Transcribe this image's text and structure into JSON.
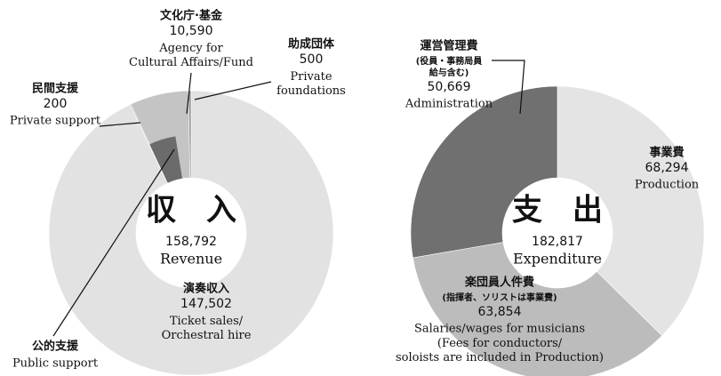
{
  "chart_data": [
    {
      "type": "donut",
      "title": "収　入",
      "title_en": "Revenue",
      "total": {
        "value": 158792,
        "label": "158,792"
      },
      "labels": [
        "演奏収入",
        "民間支援",
        "文化庁·基金",
        "助成団体"
      ],
      "labels_en": [
        "Ticket sales/\nOrchestral hire",
        "Private support",
        "Agency for\nCultural Affairs/Fund",
        "Private\nfoundations"
      ],
      "values": [
        147502,
        200,
        10590,
        500
      ],
      "value_labels": [
        "147,502",
        "200",
        "10,590",
        "500"
      ],
      "colors": [
        "#e2e2e2",
        "#b5b5b5",
        "#c4c4c4",
        "#9a9a9a"
      ],
      "inner": {
        "label": "公的支援",
        "label_en": "Public support",
        "value": 7000,
        "color": "#6b6b6b"
      }
    },
    {
      "type": "donut",
      "title": "支　出",
      "title_en": "Expenditure",
      "total": {
        "value": 182817,
        "label": "182,817"
      },
      "labels": [
        "事業費",
        "楽団員人件費",
        "運営管理費"
      ],
      "notes": [
        null,
        "(指揮者、ソリストは事業費)",
        "(役員・事務局員\n給与含む)"
      ],
      "labels_en": [
        "Production",
        "Salaries/wages for musicians",
        "Administration"
      ],
      "notes_en": [
        null,
        "(Fees for conductors/\nsoloists are included in Production)",
        null
      ],
      "values": [
        68294,
        63854,
        50669
      ],
      "value_labels": [
        "68,294",
        "63,854",
        "50,669"
      ],
      "colors": [
        "#e4e4e4",
        "#bcbcbc",
        "#707070"
      ]
    }
  ]
}
